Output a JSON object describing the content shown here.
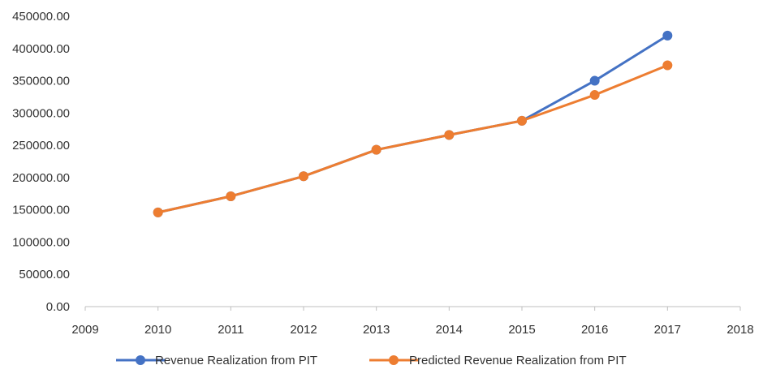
{
  "chart_data": {
    "type": "line",
    "x": [
      2010,
      2011,
      2012,
      2013,
      2014,
      2015,
      2016,
      2017
    ],
    "xlim": [
      2009,
      2018
    ],
    "x_ticks": [
      "2009",
      "2010",
      "2011",
      "2012",
      "2013",
      "2014",
      "2015",
      "2016",
      "2017",
      "2018"
    ],
    "ylim": [
      0,
      450000
    ],
    "y_ticks": [
      "0.00",
      "50000.00",
      "100000.00",
      "150000.00",
      "200000.00",
      "250000.00",
      "300000.00",
      "350000.00",
      "400000.00",
      "450000.00"
    ],
    "grid": false,
    "legend_position": "bottom",
    "series": [
      {
        "name": "Revenue Realization from PIT",
        "color": "#4472C4",
        "values": [
          146000,
          171000,
          202000,
          243000,
          266000,
          288000,
          350000,
          420000
        ]
      },
      {
        "name": "Predicted Revenue Realization from PIT",
        "color": "#ED7D31",
        "values": [
          146000,
          171000,
          202000,
          243000,
          266000,
          288000,
          328000,
          374000
        ]
      }
    ],
    "axis_color": "#BFBFBF"
  }
}
